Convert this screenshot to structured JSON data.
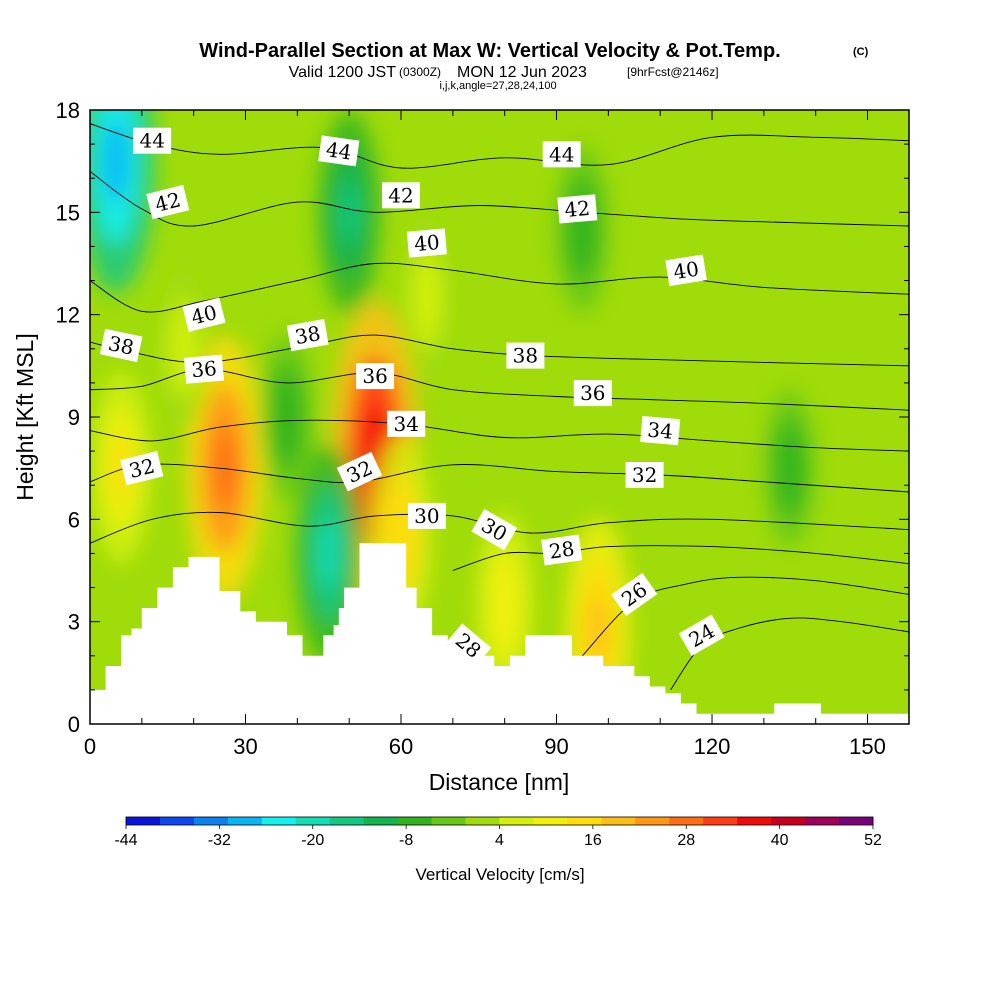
{
  "title": {
    "main": "Wind-Parallel Section at Max W: Vertical Velocity & Pot.Temp.",
    "copyright": "(C)",
    "valid_prefix": "Valid 1200 JST",
    "valid_zulu": "(0300Z)",
    "valid_date": "MON 12 Jun 2023",
    "forecast_tag": "[9hrFcst@2146z]",
    "indices": "i,j,k,angle=27,28,24,100"
  },
  "colorbar": {
    "title": "Vertical Velocity [cm/s]",
    "labels": [
      "-44",
      "-32",
      "-20",
      "-8",
      "4",
      "16",
      "28",
      "40",
      "52"
    ],
    "colors": [
      "#0a14dc",
      "#0f46f0",
      "#0a82f0",
      "#0ab4f5",
      "#14f0f0",
      "#14dcb4",
      "#14c882",
      "#14b450",
      "#32b41e",
      "#64c814",
      "#a0dc0a",
      "#d2f00a",
      "#f0f00a",
      "#ffdc0a",
      "#ffbe14",
      "#ff9614",
      "#ff6e14",
      "#ff3c14",
      "#f00a0a",
      "#c8001e",
      "#a0005a",
      "#780078"
    ]
  },
  "chart_data": {
    "type": "heatmap",
    "title": "Wind-Parallel Section at Max W: Vertical Velocity & Pot.Temp.",
    "xlabel": "Distance [nm]",
    "ylabel": "Height [Kft MSL]",
    "xlim": [
      0,
      158
    ],
    "ylim": [
      0,
      18
    ],
    "x_ticks": [
      0,
      30,
      60,
      90,
      120,
      150
    ],
    "y_ticks": [
      0,
      3,
      6,
      9,
      12,
      15,
      18
    ],
    "color_scale_min": -44,
    "color_scale_max": 52,
    "terrain": {
      "x": [
        0,
        3,
        3,
        6,
        6,
        8,
        8,
        10,
        10,
        13,
        13,
        16,
        16,
        19,
        19,
        22,
        22,
        25,
        25,
        29,
        29,
        32,
        32,
        38,
        38,
        41,
        41,
        42,
        42,
        45,
        45,
        47,
        47,
        48,
        48,
        49,
        49,
        52,
        52,
        53,
        53,
        56,
        56,
        61,
        61,
        63,
        63,
        66,
        66,
        69,
        69,
        72,
        72,
        75,
        75,
        78,
        78,
        81,
        81,
        84,
        84,
        87,
        87,
        90,
        90,
        93,
        93,
        96,
        96,
        99,
        99,
        102,
        102,
        105,
        105,
        108,
        108,
        111,
        111,
        114,
        114,
        117,
        117,
        120,
        120,
        123,
        123,
        126,
        126,
        129,
        129,
        132,
        132,
        135,
        135,
        138,
        138,
        141,
        141,
        144,
        144,
        147,
        147,
        150,
        150,
        153,
        153,
        156,
        156,
        158
      ],
      "y": [
        1.0,
        1.0,
        1.7,
        1.7,
        2.6,
        2.6,
        2.8,
        2.8,
        3.4,
        3.4,
        4.0,
        4.0,
        4.6,
        4.6,
        4.9,
        4.9,
        4.9,
        4.9,
        3.9,
        3.9,
        3.3,
        3.3,
        3.0,
        3.0,
        2.6,
        2.6,
        2.0,
        2.0,
        2.0,
        2.0,
        2.6,
        2.6,
        2.9,
        2.9,
        3.4,
        3.4,
        4.0,
        4.0,
        5.3,
        5.3,
        5.3,
        5.3,
        5.3,
        5.3,
        4.0,
        4.0,
        3.4,
        3.4,
        2.6,
        2.6,
        2.3,
        2.3,
        2.0,
        2.0,
        2.0,
        2.0,
        1.7,
        1.7,
        2.0,
        2.0,
        2.6,
        2.6,
        2.6,
        2.6,
        2.6,
        2.6,
        2.0,
        2.0,
        2.0,
        2.0,
        1.7,
        1.7,
        1.7,
        1.7,
        1.4,
        1.4,
        1.1,
        1.1,
        0.9,
        0.9,
        0.6,
        0.6,
        0.3,
        0.3,
        0.3,
        0.3,
        0.3,
        0.3,
        0.3,
        0.3,
        0.3,
        0.3,
        0.6,
        0.6,
        0.6,
        0.6,
        0.6,
        0.6,
        0.3,
        0.3,
        0.3,
        0.3,
        0.3,
        0.3,
        0.3,
        0.3,
        0.3,
        0.3,
        0.3,
        0.3
      ]
    },
    "theta_contours": [
      {
        "label": "44",
        "x": [
          0,
          12,
          25,
          45,
          60,
          80,
          100,
          120,
          140,
          158
        ],
        "y": [
          17.6,
          17.0,
          16.7,
          16.9,
          16.3,
          16.6,
          16.4,
          17.2,
          17.2,
          17.1
        ]
      },
      {
        "label": "42",
        "x": [
          0,
          10,
          20,
          40,
          55,
          75,
          95,
          115,
          135,
          158
        ],
        "y": [
          16.2,
          15.1,
          14.6,
          15.3,
          15.0,
          15.2,
          15.0,
          14.8,
          14.7,
          14.6
        ]
      },
      {
        "label": "40",
        "x": [
          0,
          10,
          22,
          40,
          55,
          70,
          90,
          110,
          130,
          158
        ],
        "y": [
          13.0,
          12.1,
          12.4,
          13.0,
          13.5,
          13.3,
          12.9,
          13.1,
          12.8,
          12.6
        ]
      },
      {
        "label": "38",
        "x": [
          0,
          8,
          22,
          42,
          55,
          70,
          85,
          105,
          130,
          158
        ],
        "y": [
          11.2,
          10.9,
          10.6,
          11.1,
          11.4,
          11.0,
          10.8,
          10.7,
          10.6,
          10.5
        ]
      },
      {
        "label": "36",
        "x": [
          0,
          10,
          22,
          38,
          55,
          70,
          90,
          110,
          130,
          158
        ],
        "y": [
          9.8,
          9.9,
          10.4,
          10.0,
          10.3,
          9.8,
          9.6,
          9.5,
          9.4,
          9.2
        ]
      },
      {
        "label": "34",
        "x": [
          0,
          12,
          25,
          40,
          60,
          80,
          100,
          120,
          140,
          158
        ],
        "y": [
          8.6,
          8.3,
          8.7,
          8.9,
          8.8,
          8.4,
          8.5,
          8.3,
          8.1,
          8.0
        ]
      },
      {
        "label": "32",
        "x": [
          0,
          10,
          25,
          40,
          52,
          70,
          90,
          110,
          130,
          158
        ],
        "y": [
          7.1,
          7.6,
          7.5,
          7.2,
          7.1,
          7.6,
          7.4,
          7.3,
          7.1,
          6.8
        ]
      },
      {
        "label": "30",
        "x": [
          0,
          12,
          25,
          42,
          55,
          70,
          85,
          100,
          120,
          158
        ],
        "y": [
          5.3,
          6.0,
          6.2,
          5.8,
          6.1,
          6.1,
          5.6,
          5.9,
          6.0,
          5.7
        ]
      },
      {
        "label": "28",
        "x": [
          70,
          80,
          90,
          100,
          120,
          140,
          158
        ],
        "y": [
          4.5,
          5.0,
          5.0,
          5.2,
          5.2,
          5.0,
          4.7
        ]
      },
      {
        "label": "26",
        "x": [
          95,
          105,
          115,
          125,
          140,
          158
        ],
        "y": [
          2.0,
          3.6,
          4.1,
          4.3,
          4.2,
          3.8
        ]
      },
      {
        "label": "24",
        "x": [
          112,
          118,
          125,
          135,
          145,
          158
        ],
        "y": [
          1.0,
          2.3,
          2.8,
          3.1,
          3.0,
          2.7
        ]
      }
    ],
    "contour_labels": [
      {
        "text": "44",
        "x": 12,
        "y": 17.1,
        "angle": 0
      },
      {
        "text": "44",
        "x": 48,
        "y": 16.8,
        "angle": 8
      },
      {
        "text": "44",
        "x": 91,
        "y": 16.7,
        "angle": 0
      },
      {
        "text": "42",
        "x": 15,
        "y": 15.3,
        "angle": -14
      },
      {
        "text": "42",
        "x": 60,
        "y": 15.5,
        "angle": 0
      },
      {
        "text": "42",
        "x": 94,
        "y": 15.1,
        "angle": -5
      },
      {
        "text": "40",
        "x": 22,
        "y": 12.0,
        "angle": -14
      },
      {
        "text": "40",
        "x": 65,
        "y": 14.1,
        "angle": -5
      },
      {
        "text": "40",
        "x": 115,
        "y": 13.3,
        "angle": -9
      },
      {
        "text": "38",
        "x": 6,
        "y": 11.1,
        "angle": 12
      },
      {
        "text": "38",
        "x": 42,
        "y": 11.4,
        "angle": -10
      },
      {
        "text": "38",
        "x": 84,
        "y": 10.8,
        "angle": 0
      },
      {
        "text": "36",
        "x": 22,
        "y": 10.4,
        "angle": -5
      },
      {
        "text": "36",
        "x": 55,
        "y": 10.2,
        "angle": 0
      },
      {
        "text": "36",
        "x": 97,
        "y": 9.7,
        "angle": 0
      },
      {
        "text": "34",
        "x": 61,
        "y": 8.8,
        "angle": 0
      },
      {
        "text": "34",
        "x": 110,
        "y": 8.6,
        "angle": 5
      },
      {
        "text": "32",
        "x": 10,
        "y": 7.5,
        "angle": -14
      },
      {
        "text": "32",
        "x": 52,
        "y": 7.4,
        "angle": -25
      },
      {
        "text": "32",
        "x": 107,
        "y": 7.3,
        "angle": 0
      },
      {
        "text": "30",
        "x": 65,
        "y": 6.1,
        "angle": 0
      },
      {
        "text": "30",
        "x": 78,
        "y": 5.7,
        "angle": 30
      },
      {
        "text": "28",
        "x": 91,
        "y": 5.1,
        "angle": -8
      },
      {
        "text": "28",
        "x": 73,
        "y": 2.3,
        "angle": 40
      },
      {
        "text": "26",
        "x": 105,
        "y": 3.8,
        "angle": -35
      },
      {
        "text": "24",
        "x": 118,
        "y": 2.6,
        "angle": -30
      }
    ],
    "w_features": [
      {
        "x": 26,
        "y": 7.5,
        "w": 30
      },
      {
        "x": 55,
        "y": 8.0,
        "w": 38
      },
      {
        "x": 60,
        "y": 5.5,
        "w": 16
      },
      {
        "x": 98,
        "y": 2.8,
        "w": 20
      },
      {
        "x": 80,
        "y": 3.5,
        "w": 12
      },
      {
        "x": 6,
        "y": 7.5,
        "w": 14
      },
      {
        "x": 46,
        "y": 5.0,
        "w": -20
      },
      {
        "x": 5,
        "y": 16.5,
        "w": -30
      },
      {
        "x": 50,
        "y": 15.0,
        "w": -16
      },
      {
        "x": 38,
        "y": 9.0,
        "w": -8
      },
      {
        "x": 95,
        "y": 14.5,
        "w": -8
      },
      {
        "x": 135,
        "y": 7.5,
        "w": -6
      },
      {
        "x": 18,
        "y": 11.0,
        "w": 6
      },
      {
        "x": 65,
        "y": 12.5,
        "w": 8
      }
    ]
  }
}
